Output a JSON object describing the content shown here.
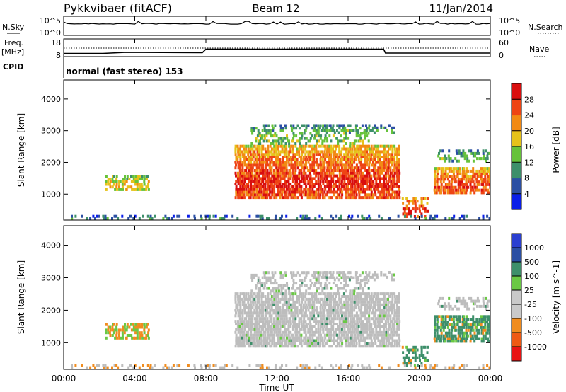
{
  "header": {
    "station": "Pykkvibaer (fitACF)",
    "beam": "Beam 12",
    "date": "11/Jan/2014"
  },
  "nsky_panel": {
    "left_label": "N.Sky",
    "right_label": "N.Search",
    "tick_top": "10^5",
    "tick_bottom": "10^0"
  },
  "freq_panel": {
    "left_label": "Freq.",
    "unit": "[MHz]",
    "left_ticks": [
      "18",
      "8"
    ],
    "right_label": "Nave",
    "right_ticks": [
      "60",
      "0"
    ]
  },
  "cpid": {
    "label": "CPID",
    "text": "normal (fast stereo) 153"
  },
  "x_axis": {
    "label": "Time UT",
    "ticks": [
      "00:00",
      "04:00",
      "08:00",
      "12:00",
      "16:00",
      "20:00",
      "00:00"
    ]
  },
  "colors": {
    "power": [
      "#0a1ee8",
      "#2b4fa3",
      "#3d8f6a",
      "#66c23a",
      "#e6c21a",
      "#f28a14",
      "#ee4414",
      "#d90e0e"
    ],
    "velocity": [
      "#e81414",
      "#ee5a14",
      "#f08c1e",
      "#c9c9c9",
      "#c9c9c9",
      "#6ac844",
      "#3d8f6a",
      "#2b4fa3",
      "#2a3fd0"
    ],
    "ground_scatter": "#bdbdbd"
  },
  "chart_data": [
    {
      "type": "heatmap",
      "name": "power",
      "ylabel": "Slant Range [km]",
      "y_ticks": [
        "1000",
        "2000",
        "3000",
        "4000"
      ],
      "ylim": [
        180,
        4600
      ],
      "xlim_hours": [
        0,
        24
      ],
      "colorbar_label": "Power [dB]",
      "colorbar_ticks": [
        "4",
        "8",
        "12",
        "16",
        "20",
        "24",
        "28"
      ],
      "clim": [
        0,
        32
      ]
    },
    {
      "type": "heatmap",
      "name": "velocity",
      "ylabel": "Slant Range [km]",
      "y_ticks": [
        "1000",
        "2000",
        "3000",
        "4000"
      ],
      "ylim": [
        180,
        4600
      ],
      "xlim_hours": [
        0,
        24
      ],
      "colorbar_label": "Velocity [m s^-1]",
      "colorbar_ticks": [
        "-1000",
        "-500",
        "-100",
        "-25",
        "25",
        "100",
        "500",
        "1000"
      ]
    },
    {
      "type": "line",
      "name": "transmit-frequency",
      "x_hours": [
        0,
        2.2,
        3.5,
        7.8,
        8.0,
        18.0,
        18.1,
        24
      ],
      "y": [
        9.8,
        9.8,
        10.4,
        10.2,
        12.2,
        12.2,
        10.0,
        10.0
      ]
    }
  ]
}
